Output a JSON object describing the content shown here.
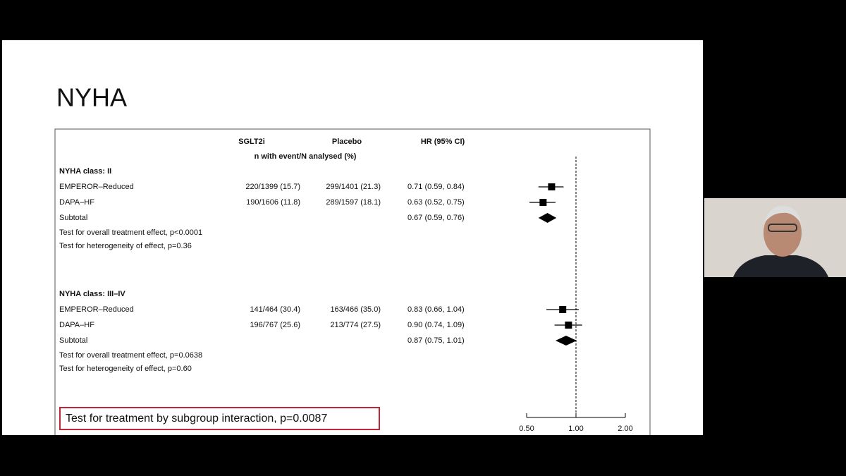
{
  "slide_title": "NYHA",
  "chart_data": {
    "type": "forest",
    "columns": [
      "SGLT2i",
      "Placebo",
      "HR (95% CI)"
    ],
    "subheader": "n with event/N analysed (%)",
    "groups": [
      {
        "name": "NYHA class: II",
        "rows": [
          {
            "label": "EMPEROR–Reduced",
            "sglt2i": "220/1399 (15.7)",
            "placebo": "299/1401 (21.3)",
            "hr_label": "0.71 (0.59,  0.84)",
            "hr": 0.71,
            "lo": 0.59,
            "hi": 0.84
          },
          {
            "label": "DAPA–HF",
            "sglt2i": "190/1606 (11.8)",
            "placebo": "289/1597 (18.1)",
            "hr_label": "0.63 (0.52,  0.75)",
            "hr": 0.63,
            "lo": 0.52,
            "hi": 0.75
          }
        ],
        "subtotal": {
          "label": "Subtotal",
          "hr_label": "0.67 (0.59,  0.76)",
          "hr": 0.67,
          "lo": 0.59,
          "hi": 0.76
        },
        "notes": [
          "Test for overall treatment effect, p<0.0001",
          "Test for heterogeneity of effect, p=0.36"
        ]
      },
      {
        "name": "NYHA class: III–IV",
        "rows": [
          {
            "label": "EMPEROR–Reduced",
            "sglt2i": "141/464 (30.4)",
            "placebo": "163/466 (35.0)",
            "hr_label": "0.83 (0.66,  1.04)",
            "hr": 0.83,
            "lo": 0.66,
            "hi": 1.04
          },
          {
            "label": "DAPA–HF",
            "sglt2i": "196/767 (25.6)",
            "placebo": "213/774 (27.5)",
            "hr_label": "0.90 (0.74,  1.09)",
            "hr": 0.9,
            "lo": 0.74,
            "hi": 1.09
          }
        ],
        "subtotal": {
          "label": "Subtotal",
          "hr_label": "0.87 (0.75,  1.01)",
          "hr": 0.87,
          "lo": 0.75,
          "hi": 1.01
        },
        "notes": [
          "Test for overall treatment effect, p=0.0638",
          "Test for heterogeneity of effect, p=0.60"
        ]
      }
    ],
    "interaction_note": "Test for treatment by subgroup interaction, p=0.0087",
    "xscale": "log",
    "xlim": [
      0.5,
      2
    ],
    "xticks": [
      {
        "value": 0.5,
        "label": "0.50"
      },
      {
        "value": 1,
        "label": "1.00"
      },
      {
        "value": 2,
        "label": "2.00"
      }
    ],
    "reference_line": 1,
    "color": "#000000"
  }
}
